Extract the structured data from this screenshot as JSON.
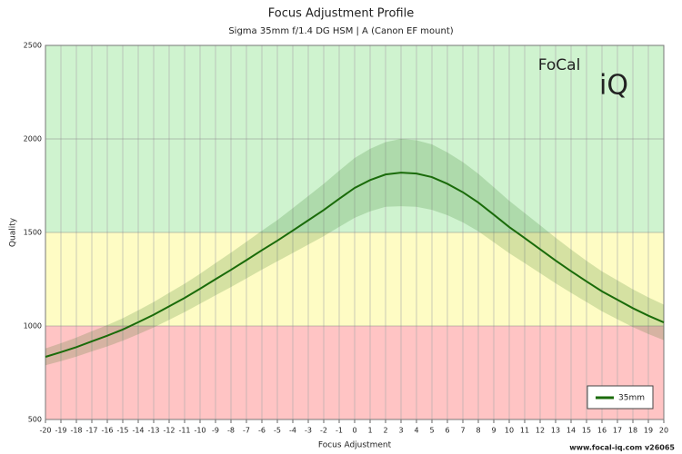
{
  "chart_data": {
    "type": "line",
    "title": "Focus Adjustment Profile",
    "subtitle": "Sigma 35mm f/1.4 DG HSM | A (Canon EF mount)",
    "x_label": "Focus Adjustment",
    "y_label": "Quality",
    "footer": "www.focal-iq.com  v26065",
    "logo": {
      "top": "FoCal",
      "bottom": "iQ"
    },
    "x": [
      -20,
      -19,
      -18,
      -17,
      -16,
      -15,
      -14,
      -13,
      -12,
      -11,
      -10,
      -9,
      -8,
      -7,
      -6,
      -5,
      -4,
      -3,
      -2,
      -1,
      0,
      1,
      2,
      3,
      4,
      5,
      6,
      7,
      8,
      9,
      10,
      11,
      12,
      13,
      14,
      15,
      16,
      17,
      18,
      19,
      20
    ],
    "series": [
      {
        "name": "35mm",
        "color": "#1a6b0a",
        "values": [
          835,
          860,
          887,
          918,
          948,
          981,
          1020,
          1060,
          1105,
          1150,
          1199,
          1250,
          1300,
          1352,
          1405,
          1456,
          1510,
          1565,
          1620,
          1680,
          1738,
          1780,
          1810,
          1820,
          1815,
          1796,
          1760,
          1715,
          1660,
          1595,
          1529,
          1470,
          1410,
          1350,
          1293,
          1238,
          1185,
          1140,
          1095,
          1055,
          1019
        ],
        "upper": [
          880,
          908,
          938,
          972,
          1005,
          1041,
          1084,
          1128,
          1177,
          1226,
          1279,
          1336,
          1392,
          1450,
          1509,
          1566,
          1630,
          1695,
          1760,
          1830,
          1898,
          1947,
          1983,
          2000,
          1993,
          1971,
          1928,
          1876,
          1814,
          1742,
          1669,
          1604,
          1538,
          1472,
          1409,
          1348,
          1292,
          1244,
          1196,
          1153,
          1114
        ],
        "lower": [
          790,
          812,
          836,
          864,
          891,
          921,
          956,
          992,
          1033,
          1074,
          1119,
          1164,
          1208,
          1254,
          1301,
          1346,
          1390,
          1435,
          1480,
          1530,
          1578,
          1613,
          1637,
          1640,
          1637,
          1621,
          1592,
          1554,
          1506,
          1448,
          1389,
          1336,
          1282,
          1228,
          1177,
          1128,
          1078,
          1036,
          994,
          957,
          924
        ]
      }
    ],
    "zones": [
      {
        "from": 500,
        "to": 1000,
        "color": "#ffc4c4"
      },
      {
        "from": 1000,
        "to": 1500,
        "color": "#fefcc4"
      },
      {
        "from": 1500,
        "to": 2500,
        "color": "#cff3cf"
      }
    ],
    "xlim": [
      -20,
      20
    ],
    "ylim": [
      500,
      2500
    ],
    "xticks": [
      -20,
      -19,
      -18,
      -17,
      -16,
      -15,
      -14,
      -13,
      -12,
      -11,
      -10,
      -9,
      -8,
      -7,
      -6,
      -5,
      -4,
      -3,
      -2,
      -1,
      0,
      1,
      2,
      3,
      4,
      5,
      6,
      7,
      8,
      9,
      10,
      11,
      12,
      13,
      14,
      15,
      16,
      17,
      18,
      19,
      20
    ],
    "yticks": [
      500,
      1000,
      1500,
      2000,
      2500
    ],
    "grid": true,
    "legend": "lower-right"
  }
}
